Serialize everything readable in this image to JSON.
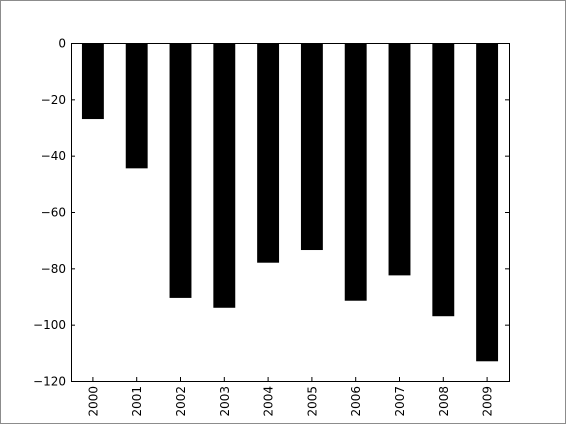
{
  "chart_data": {
    "type": "bar",
    "categories": [
      "2000",
      "2001",
      "2002",
      "2003",
      "2004",
      "2005",
      "2006",
      "2007",
      "2008",
      "2009"
    ],
    "values": [
      -27,
      -44.5,
      -90.5,
      -94,
      -78,
      -73.5,
      -91.5,
      -82.5,
      -97,
      -113
    ],
    "title": "",
    "xlabel": "",
    "ylabel": "",
    "ylim": [
      -120,
      0
    ],
    "yticks": [
      0,
      -20,
      -40,
      -60,
      -80,
      -100,
      -120
    ],
    "bar_color": "#000000",
    "grid": false,
    "legend": false,
    "xtick_rotation": "vertical"
  }
}
